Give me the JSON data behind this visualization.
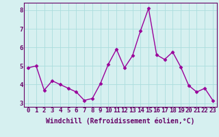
{
  "x": [
    0,
    1,
    2,
    3,
    4,
    5,
    6,
    7,
    8,
    9,
    10,
    11,
    12,
    13,
    14,
    15,
    16,
    17,
    18,
    19,
    20,
    21,
    22,
    23
  ],
  "y": [
    4.9,
    5.0,
    3.7,
    4.2,
    4.0,
    3.8,
    3.6,
    3.15,
    3.25,
    4.05,
    5.1,
    5.9,
    4.9,
    5.55,
    6.9,
    8.1,
    5.6,
    5.35,
    5.75,
    4.95,
    3.95,
    3.6,
    3.8,
    3.15
  ],
  "xlabel": "Windchill (Refroidissement éolien,°C)",
  "ylim": [
    2.8,
    8.4
  ],
  "xlim": [
    -0.5,
    23.5
  ],
  "yticks": [
    3,
    4,
    5,
    6,
    7,
    8
  ],
  "xticks": [
    0,
    1,
    2,
    3,
    4,
    5,
    6,
    7,
    8,
    9,
    10,
    11,
    12,
    13,
    14,
    15,
    16,
    17,
    18,
    19,
    20,
    21,
    22,
    23
  ],
  "line_color": "#990099",
  "marker": "D",
  "marker_size": 2.5,
  "bg_color": "#d6f0f0",
  "grid_color": "#aadddd",
  "xlabel_fontsize": 7.0,
  "tick_fontsize": 6.5,
  "line_width": 1.0,
  "spine_color": "#660066",
  "label_color": "#660066"
}
